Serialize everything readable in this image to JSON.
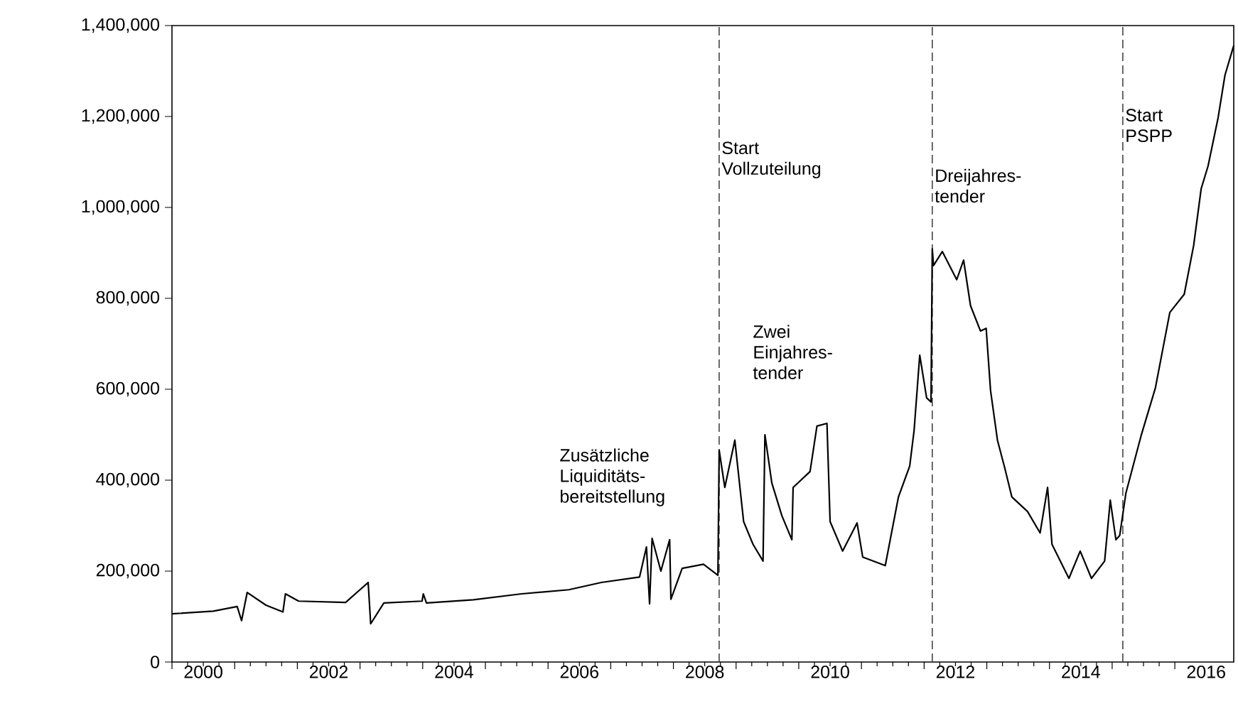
{
  "chart_data": {
    "type": "line",
    "x": [
      2000.0,
      2000.66,
      2001.04,
      2001.11,
      2001.2,
      2001.5,
      2001.77,
      2001.81,
      2002.02,
      2002.77,
      2003.13,
      2003.17,
      2003.38,
      2003.99,
      2004.01,
      2004.06,
      2004.81,
      2005.58,
      2006.33,
      2006.85,
      2007.46,
      2007.57,
      2007.62,
      2007.66,
      2007.8,
      2007.94,
      2007.96,
      2008.14,
      2008.48,
      2008.71,
      2008.73,
      2008.82,
      2008.98,
      2009.12,
      2009.27,
      2009.43,
      2009.46,
      2009.57,
      2009.73,
      2009.89,
      2009.91,
      2010.18,
      2010.29,
      2010.45,
      2010.5,
      2010.7,
      2010.93,
      2011.02,
      2011.38,
      2011.59,
      2011.77,
      2011.84,
      2011.93,
      2012.04,
      2012.11,
      2012.13,
      2012.15,
      2012.29,
      2012.52,
      2012.63,
      2012.74,
      2012.9,
      2012.99,
      2013.06,
      2013.17,
      2013.29,
      2013.4,
      2013.65,
      2013.85,
      2013.97,
      2014.04,
      2014.31,
      2014.49,
      2014.67,
      2014.88,
      2014.97,
      2015.06,
      2015.12,
      2015.22,
      2015.46,
      2015.69,
      2015.92,
      2016.15,
      2016.3,
      2016.42,
      2016.53,
      2016.69,
      2016.8,
      2016.94
    ],
    "series": [
      {
        "color": "#000000",
        "values": [
          106000,
          112000,
          122000,
          91000,
          153000,
          125000,
          110000,
          150000,
          134000,
          131000,
          175000,
          84000,
          130000,
          134000,
          150000,
          130000,
          137000,
          150000,
          159000,
          175000,
          187000,
          253000,
          128000,
          272000,
          200000,
          269000,
          138000,
          206000,
          215000,
          191000,
          466000,
          384000,
          488000,
          309000,
          259000,
          222000,
          500000,
          394000,
          322000,
          269000,
          384000,
          419000,
          519000,
          525000,
          309000,
          244000,
          306000,
          231000,
          212000,
          363000,
          431000,
          509000,
          675000,
          581000,
          572000,
          909000,
          872000,
          903000,
          841000,
          884000,
          784000,
          728000,
          734000,
          597000,
          488000,
          425000,
          363000,
          331000,
          284000,
          384000,
          259000,
          184000,
          244000,
          184000,
          222000,
          356000,
          269000,
          278000,
          372000,
          497000,
          603000,
          769000,
          809000,
          916000,
          1041000,
          1091000,
          1197000,
          1291000,
          1356000
        ]
      }
    ],
    "xlim": [
      2000,
      2016.94
    ],
    "ylim": [
      0,
      1400000
    ],
    "xticks": [
      {
        "value": 2000,
        "label": null
      },
      {
        "value": 2001,
        "label": null
      },
      {
        "value": 2002,
        "label": null
      },
      {
        "value": 2003,
        "label": null
      },
      {
        "value": 2004,
        "label": null
      },
      {
        "value": 2005,
        "label": null
      },
      {
        "value": 2006,
        "label": null
      },
      {
        "value": 2007,
        "label": null
      },
      {
        "value": 2008,
        "label": null
      },
      {
        "value": 2009,
        "label": null
      },
      {
        "value": 2010,
        "label": null
      },
      {
        "value": 2011,
        "label": null
      },
      {
        "value": 2012,
        "label": null
      },
      {
        "value": 2013,
        "label": null
      },
      {
        "value": 2014,
        "label": null
      },
      {
        "value": 2015,
        "label": null
      },
      {
        "value": 2016,
        "label": null
      },
      {
        "value": 2000.5,
        "label": "2000"
      },
      {
        "value": 2002.5,
        "label": "2002"
      },
      {
        "value": 2004.5,
        "label": "2004"
      },
      {
        "value": 2006.5,
        "label": "2006"
      },
      {
        "value": 2008.5,
        "label": "2008"
      },
      {
        "value": 2010.5,
        "label": "2010"
      },
      {
        "value": 2012.5,
        "label": "2012"
      },
      {
        "value": 2014.5,
        "label": "2014"
      },
      {
        "value": 2016.5,
        "label": "2016"
      }
    ],
    "yticks": [
      {
        "value": 0,
        "label": "0"
      },
      {
        "value": 200000,
        "label": "200,000"
      },
      {
        "value": 400000,
        "label": "400,000"
      },
      {
        "value": 600000,
        "label": "600,000"
      },
      {
        "value": 800000,
        "label": "800,000"
      },
      {
        "value": 1000000,
        "label": "1,000,000"
      },
      {
        "value": 1200000,
        "label": "1,200,000"
      },
      {
        "value": 1400000,
        "label": "1,400,000"
      }
    ],
    "ref_lines": [
      {
        "axis": "x",
        "value": 2008.73,
        "color": "#444444",
        "line_style": "dashed"
      },
      {
        "axis": "x",
        "value": 2012.13,
        "color": "#444444",
        "line_style": "dashed"
      },
      {
        "axis": "x",
        "value": 2015.17,
        "color": "#444444",
        "line_style": "dashed"
      }
    ],
    "annotations": [
      "Zusätzliche Liquiditäts-bereitstellung",
      {
        "text": "Start Vollzuteilung",
        "x": 2008.73,
        "y": 1150000
      },
      "Zwei Einjahres-tender",
      {
        "text": "Dreijahres-tender",
        "x": 2012.13,
        "y": 1090000
      },
      {
        "text": "Start PSPP",
        "x": 2015.17,
        "y": 1222000
      }
    ]
  }
}
